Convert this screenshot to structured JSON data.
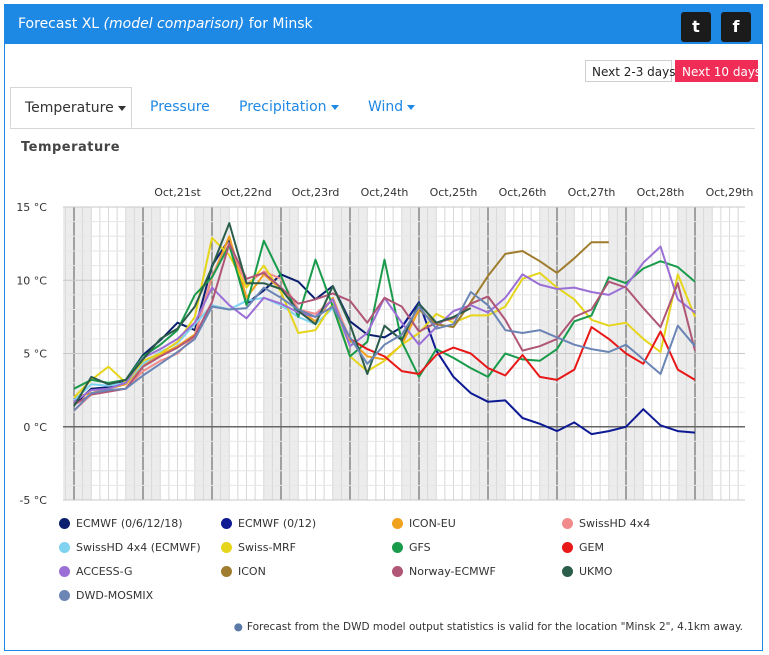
{
  "header": {
    "title_prefix": "Forecast XL",
    "title_italic": "(model comparison)",
    "title_suffix": "for Minsk",
    "twitter_glyph": "t",
    "facebook_glyph": "f"
  },
  "range_buttons": {
    "next_2_3": "Next 2-3 days",
    "next_10": "Next 10 days"
  },
  "tabs": [
    {
      "label": "Temperature",
      "active": true
    },
    {
      "label": "Pressure",
      "active": false
    },
    {
      "label": "Precipitation",
      "active": false
    },
    {
      "label": "Wind",
      "active": false
    }
  ],
  "footnote": "Forecast from the DWD model output statistics is valid for the location \"Minsk 2\", 4.1km away.",
  "colors": {
    "accent": "#1e88e5",
    "active_button": "#ef2d56"
  },
  "chart_data": {
    "type": "line",
    "title": "Temperature",
    "ylim": [
      -5,
      15
    ],
    "yticks": [
      "15 °C",
      "10 °C",
      "5 °C",
      "0 °C",
      "-5 °C"
    ],
    "day_labels": [
      "Oct,21st",
      "Oct,22nd",
      "Oct,23rd",
      "Oct,24th",
      "Oct,25th",
      "Oct,26th",
      "Oct,27th",
      "Oct,28th",
      "Oct,29th"
    ],
    "x_unit": "hours from start (first midnight at 24)",
    "x_range": [
      0,
      216
    ],
    "grid": true,
    "legend_position": "bottom",
    "series": [
      {
        "name": "ECMWF (0/6/12/18)",
        "color": "#0a1f6e",
        "x": [
          0,
          6,
          12,
          18,
          24,
          30,
          36,
          42,
          48,
          54,
          60,
          66,
          72,
          78,
          84,
          90,
          96,
          102,
          108,
          114,
          120
        ],
        "y": [
          1.5,
          2.6,
          2.7,
          3.2,
          4.9,
          5.9,
          7.1,
          6.6,
          11.0,
          12.8,
          8.4,
          9.3,
          10.4,
          9.9,
          8.7,
          9.6,
          7.2,
          6.3,
          6.1,
          6.8,
          8.5
        ]
      },
      {
        "name": "ECMWF (0/12)",
        "color": "#0d1a94",
        "x": [
          114,
          120,
          126,
          132,
          138,
          144,
          150,
          156,
          162,
          168,
          174,
          180,
          186,
          192,
          198,
          204,
          210,
          216
        ],
        "y": [
          6.8,
          8.5,
          5.2,
          3.4,
          2.3,
          1.7,
          1.8,
          0.6,
          0.2,
          -0.3,
          0.3,
          -0.5,
          -0.3,
          0.0,
          1.2,
          0.1,
          -0.3,
          -0.4
        ]
      },
      {
        "name": "ICON-EU",
        "color": "#f0a11e",
        "x": [
          0,
          6,
          12,
          18,
          24,
          30,
          36,
          42,
          48,
          54,
          60,
          66,
          72,
          78,
          84,
          90,
          96,
          102,
          108,
          114,
          120
        ],
        "y": [
          2.0,
          2.3,
          2.6,
          2.9,
          4.2,
          4.9,
          5.5,
          6.3,
          10.2,
          13.0,
          8.8,
          10.4,
          9.4,
          8.0,
          7.2,
          8.8,
          5.9,
          4.8,
          4.6,
          5.6,
          8.0
        ]
      },
      {
        "name": "SwissHD 4x4",
        "color": "#f28b8b",
        "x": [
          0,
          6,
          12,
          18,
          24,
          30,
          36,
          42,
          48,
          54,
          60,
          66,
          72,
          78,
          84,
          90,
          96
        ],
        "y": [
          1.1,
          2.2,
          2.4,
          2.6,
          3.8,
          4.5,
          5.0,
          6.2,
          10.3,
          12.5,
          9.7,
          10.6,
          10.1,
          8.0,
          7.7,
          8.7,
          6.0
        ]
      },
      {
        "name": "SwissHD 4x4 (ECMWF)",
        "color": "#7fd3f0",
        "x": [
          0,
          6,
          12,
          18,
          24,
          30,
          36,
          42,
          48,
          54,
          60,
          66,
          72,
          78,
          84,
          90,
          96
        ],
        "y": [
          1.8,
          2.9,
          2.8,
          3.0,
          4.3,
          5.1,
          5.7,
          7.0,
          8.3,
          8.0,
          8.6,
          8.8,
          8.3,
          7.5,
          7.0,
          8.1,
          5.6
        ]
      },
      {
        "name": "Swiss-MRF",
        "color": "#e6d51a",
        "x": [
          0,
          6,
          12,
          18,
          24,
          30,
          36,
          42,
          48,
          54,
          60,
          66,
          72,
          78,
          84,
          90,
          96,
          102,
          108,
          114,
          120,
          126,
          132,
          138,
          144,
          150,
          156,
          162,
          168,
          174,
          180,
          186,
          192,
          198,
          204,
          210,
          216
        ],
        "y": [
          2.0,
          3.2,
          4.1,
          3.0,
          4.5,
          5.0,
          5.8,
          7.5,
          12.9,
          11.7,
          9.5,
          11.0,
          9.2,
          6.4,
          6.6,
          8.4,
          4.8,
          3.8,
          4.5,
          5.6,
          6.4,
          7.7,
          7.1,
          7.6,
          7.6,
          8.2,
          10.1,
          10.5,
          9.5,
          8.7,
          7.3,
          6.9,
          7.1,
          6.0,
          5.1,
          10.4,
          7.5
        ]
      },
      {
        "name": "GFS",
        "color": "#199b4b",
        "x": [
          0,
          6,
          12,
          18,
          24,
          30,
          36,
          42,
          48,
          54,
          60,
          66,
          72,
          78,
          84,
          90,
          96,
          102,
          108,
          114,
          120,
          126,
          132,
          138,
          144,
          150,
          156,
          162,
          168,
          174,
          180,
          186,
          192,
          198,
          204,
          210,
          216
        ],
        "y": [
          2.6,
          3.2,
          3.0,
          3.2,
          4.8,
          5.6,
          6.6,
          9.0,
          10.2,
          12.4,
          8.3,
          12.7,
          10.3,
          7.5,
          11.4,
          8.2,
          4.8,
          5.8,
          11.4,
          5.8,
          3.4,
          5.3,
          4.7,
          4.0,
          3.4,
          5.0,
          4.6,
          4.5,
          5.3,
          7.2,
          7.6,
          10.2,
          9.8,
          10.8,
          11.3,
          10.9,
          9.9
        ]
      },
      {
        "name": "GEM",
        "color": "#e81818",
        "x": [
          96,
          102,
          108,
          114,
          120,
          126,
          132,
          138,
          144,
          150,
          156,
          162,
          168,
          174,
          180,
          186,
          192,
          198,
          204,
          210,
          216
        ],
        "y": [
          6.0,
          5.3,
          4.8,
          3.8,
          3.6,
          4.9,
          5.4,
          5.0,
          4.0,
          3.5,
          4.9,
          3.4,
          3.2,
          3.9,
          6.8,
          6.0,
          5.0,
          4.3,
          6.5,
          3.9,
          3.2
        ]
      },
      {
        "name": "ACCESS-G",
        "color": "#9b6fd6",
        "x": [
          0,
          6,
          12,
          18,
          24,
          30,
          36,
          42,
          48,
          54,
          60,
          66,
          72,
          78,
          84,
          90,
          96,
          102,
          108,
          114,
          120,
          126,
          132,
          138,
          144,
          150,
          156,
          162,
          168,
          174,
          180,
          186,
          192,
          198,
          204,
          210,
          216
        ],
        "y": [
          1.7,
          2.5,
          2.6,
          3.0,
          4.7,
          5.3,
          6.0,
          7.1,
          9.5,
          8.3,
          7.4,
          8.8,
          8.4,
          7.8,
          7.5,
          8.7,
          5.5,
          6.4,
          8.8,
          7.1,
          5.6,
          6.8,
          7.9,
          8.3,
          7.8,
          8.8,
          10.4,
          9.7,
          9.4,
          9.5,
          9.2,
          9.0,
          9.6,
          11.2,
          12.3,
          8.7,
          7.8
        ]
      },
      {
        "name": "ICON",
        "color": "#a07d2e",
        "x": [
          120,
          126,
          132,
          138,
          144,
          150,
          156,
          162,
          168,
          174,
          180,
          186
        ],
        "y": [
          8.0,
          7.0,
          6.8,
          8.5,
          10.3,
          11.8,
          12.0,
          11.3,
          10.5,
          11.5,
          12.6,
          12.6
        ]
      },
      {
        "name": "Norway-ECMWF",
        "color": "#b05677",
        "x": [
          0,
          6,
          12,
          18,
          24,
          30,
          36,
          42,
          48,
          54,
          60,
          66,
          72,
          78,
          84,
          90,
          96,
          102,
          108,
          114,
          120,
          126,
          132,
          138,
          144,
          150,
          156,
          162,
          168,
          174,
          180,
          186,
          192,
          198,
          204,
          210,
          216
        ],
        "y": [
          1.5,
          2.2,
          2.4,
          2.6,
          4.1,
          4.8,
          5.4,
          6.2,
          8.5,
          12.5,
          10.1,
          10.5,
          9.5,
          8.4,
          8.7,
          9.1,
          8.6,
          7.1,
          8.8,
          8.2,
          6.5,
          7.1,
          7.4,
          8.4,
          8.9,
          7.3,
          5.2,
          5.5,
          6.0,
          7.5,
          8.0,
          9.9,
          9.5,
          8.1,
          6.8,
          9.8,
          5.2
        ]
      },
      {
        "name": "UKMO",
        "color": "#2b5e4a",
        "x": [
          0,
          6,
          12,
          18,
          24,
          30,
          36,
          42,
          48,
          54,
          60,
          66,
          72,
          78,
          84,
          90,
          96,
          102,
          108,
          114,
          120,
          126,
          132,
          138
        ],
        "y": [
          1.4,
          3.4,
          2.9,
          3.2,
          4.6,
          6.0,
          6.7,
          8.2,
          10.9,
          13.9,
          9.8,
          9.8,
          9.4,
          7.9,
          7.0,
          9.6,
          7.0,
          3.6,
          6.9,
          5.9,
          8.4,
          7.1,
          7.5,
          8.1
        ]
      },
      {
        "name": "DWD-MOSMIX",
        "color": "#6b85b5",
        "x": [
          0,
          6,
          12,
          18,
          24,
          30,
          36,
          42,
          48,
          54,
          60,
          66,
          72,
          78,
          84,
          90,
          96,
          102,
          108,
          114,
          120,
          126,
          132,
          138,
          144,
          150,
          156,
          162,
          168,
          174,
          180,
          186,
          192,
          198,
          204,
          210,
          216
        ],
        "y": [
          1.1,
          2.3,
          2.5,
          2.6,
          3.5,
          4.3,
          5.1,
          6.0,
          8.2,
          8.0,
          8.1,
          9.5,
          8.8,
          8.0,
          7.5,
          8.2,
          6.1,
          4.3,
          5.6,
          6.3,
          8.2,
          6.7,
          7.0,
          9.2,
          8.3,
          6.6,
          6.4,
          6.6,
          6.1,
          5.6,
          5.3,
          5.1,
          5.6,
          4.6,
          3.6,
          6.9,
          5.5
        ]
      }
    ]
  }
}
